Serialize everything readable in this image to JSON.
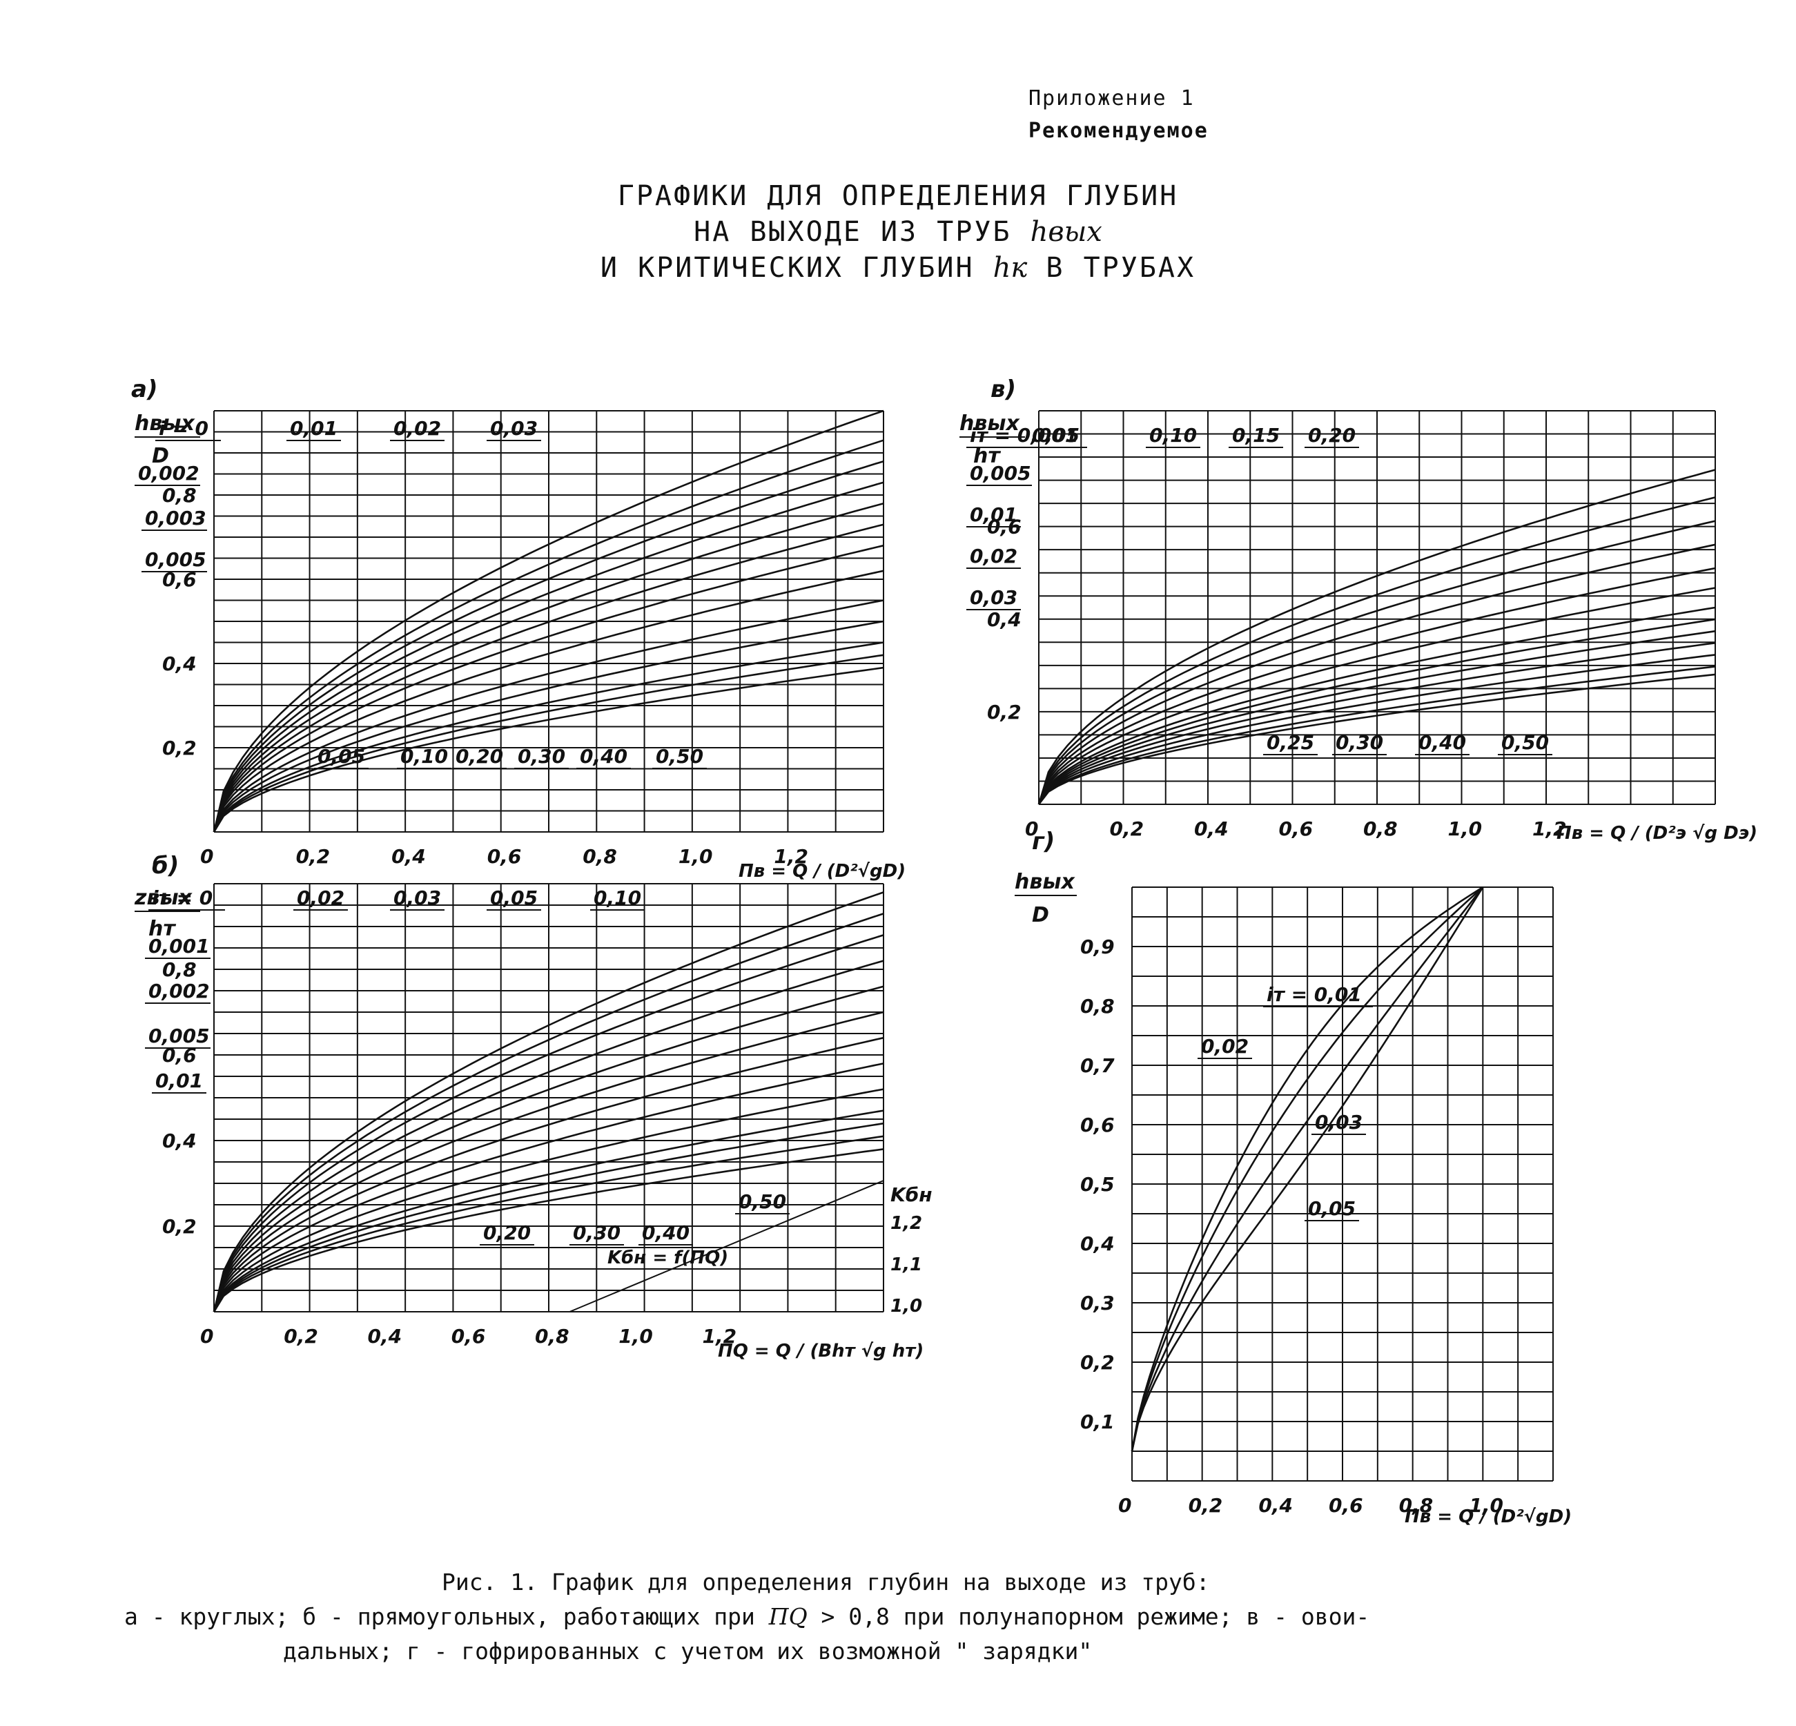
{
  "header": {
    "appendix": "Приложение 1",
    "status": "Рекомендуемое"
  },
  "title": {
    "line1": "ГРАФИКИ ДЛЯ ОПРЕДЕЛЕНИЯ ГЛУБИН",
    "line2a": "НА ВЫХОДЕ ИЗ ТРУБ",
    "line2b": "hвых",
    "line3a": "И КРИТИЧЕСКИХ ГЛУБИН",
    "line3b": "hк",
    "line3c": "В ТРУБАХ"
  },
  "caption": {
    "line1": "Рис. 1. График для определения глубин на выходе из труб:",
    "line2a": "а - круглых; б - прямоугольных, работающих при",
    "line2b": "ПQ",
    "line2c": "> 0,8 при полунапорном режиме; в - овои-",
    "line3": "дальных; г - гофрированных с учетом их возможной \" зарядки\""
  },
  "chart_data": [
    {
      "panel": "а)",
      "type": "line",
      "ylabel_top": "hвых",
      "ylabel_bottom": "D",
      "xlabel": "Пв = Q / (D²√gD)",
      "xlim": [
        0,
        1.4
      ],
      "ylim": [
        0,
        1.0
      ],
      "x_ticks": [
        "0",
        "0,2",
        "0,4",
        "0,6",
        "0,8",
        "1,0",
        "1,2"
      ],
      "y_ticks": [
        "0,2",
        "0,4",
        "0,6",
        "0,8"
      ],
      "series": [
        {
          "name": "i = 0",
          "k": 1.0
        },
        {
          "name": "0,002",
          "k": 0.93
        },
        {
          "name": "0,003",
          "k": 0.88
        },
        {
          "name": "0,005",
          "k": 0.83
        },
        {
          "name": "0,01",
          "k": 0.78
        },
        {
          "name": "0,02",
          "k": 0.73
        },
        {
          "name": "0,03",
          "k": 0.68
        },
        {
          "name": "0,05",
          "k": 0.62
        },
        {
          "name": "0,10",
          "k": 0.55
        },
        {
          "name": "0,20",
          "k": 0.5
        },
        {
          "name": "0,30",
          "k": 0.45
        },
        {
          "name": "0,40",
          "k": 0.42
        },
        {
          "name": "0,50",
          "k": 0.39
        }
      ],
      "labels": [
        "i = 0",
        "0,01",
        "0,02",
        "0,03",
        "0,002",
        "0,003",
        "0,005",
        "0,05",
        "0,10",
        "0,20",
        "0,30",
        "0,40",
        "0,50"
      ]
    },
    {
      "panel": "в)",
      "type": "line",
      "ylabel_top": "hвых",
      "ylabel_bottom": "hт",
      "xlabel": "Пв = Q / (D²э √g Dэ)",
      "xlim": [
        0,
        1.6
      ],
      "ylim": [
        0,
        0.85
      ],
      "x_ticks": [
        "0",
        "0,2",
        "0,4",
        "0,6",
        "0,8",
        "1,0",
        "1,2"
      ],
      "y_ticks": [
        "0,2",
        "0,4",
        "0,6"
      ],
      "series": [
        {
          "name": "iт = 0,001",
          "k": 0.85
        },
        {
          "name": "0,005",
          "k": 0.78
        },
        {
          "name": "0,01",
          "k": 0.72
        },
        {
          "name": "0,02",
          "k": 0.66
        },
        {
          "name": "0,03",
          "k": 0.6
        },
        {
          "name": "0,05",
          "k": 0.55
        },
        {
          "name": "0,10",
          "k": 0.5
        },
        {
          "name": "0,15",
          "k": 0.47
        },
        {
          "name": "0,20",
          "k": 0.44
        },
        {
          "name": "0,25",
          "k": 0.41
        },
        {
          "name": "0,30",
          "k": 0.38
        },
        {
          "name": "0,40",
          "k": 0.35
        },
        {
          "name": "0,50",
          "k": 0.33
        }
      ],
      "labels": [
        "iт = 0,001",
        "0,05",
        "0,10",
        "0,15",
        "0,20",
        "0,005",
        "0,01",
        "0,02",
        "0,03",
        "0,25",
        "0,30",
        "0,40",
        "0,50"
      ]
    },
    {
      "panel": "б)",
      "type": "line",
      "ylabel_top": "zвых",
      "ylabel_bottom": "hт",
      "xlabel": "ПQ = Q / (Bhт √g hт)",
      "xlim": [
        0,
        1.6
      ],
      "ylim": [
        0,
        1.0
      ],
      "x_ticks": [
        "0",
        "0,2",
        "0,4",
        "0,6",
        "0,8",
        "1,0",
        "1,2"
      ],
      "y_ticks": [
        "0,2",
        "0,4",
        "0,6",
        "0,8"
      ],
      "right_axis_label": "Kбн",
      "right_ticks": [
        "1,0",
        "1,1",
        "1,2"
      ],
      "kbn_label": "Kбн = f(ПQ)",
      "series": [
        {
          "name": "iт = 0",
          "k": 0.98
        },
        {
          "name": "0,001",
          "k": 0.93
        },
        {
          "name": "0,002",
          "k": 0.88
        },
        {
          "name": "0,005",
          "k": 0.82
        },
        {
          "name": "0,01",
          "k": 0.76
        },
        {
          "name": "0,02",
          "k": 0.7
        },
        {
          "name": "0,03",
          "k": 0.64
        },
        {
          "name": "0,05",
          "k": 0.58
        },
        {
          "name": "0,10",
          "k": 0.52
        },
        {
          "name": "0,20",
          "k": 0.47
        },
        {
          "name": "0,30",
          "k": 0.44
        },
        {
          "name": "0,40",
          "k": 0.41
        },
        {
          "name": "0,50",
          "k": 0.38
        }
      ],
      "labels": [
        "iт = 0",
        "0,02",
        "0,03",
        "0,05",
        "0,10",
        "0,001",
        "0,002",
        "0,005",
        "0,01",
        "0,20",
        "0,30",
        "0,40",
        "0,50"
      ]
    },
    {
      "panel": "г)",
      "type": "line",
      "ylabel_top": "hвых",
      "ylabel_bottom": "D",
      "xlabel": "Пв = Q / (D²√gD)",
      "xlim": [
        0,
        1.2
      ],
      "ylim": [
        0,
        1.0
      ],
      "x_ticks": [
        "0",
        "0,2",
        "0,4",
        "0,6",
        "0,8",
        "1,0"
      ],
      "y_ticks": [
        "0,1",
        "0,2",
        "0,3",
        "0,4",
        "0,5",
        "0,6",
        "0,7",
        "0,8",
        "0,9"
      ],
      "series": [
        {
          "name": "iт = 0,01"
        },
        {
          "name": "0,02"
        },
        {
          "name": "0,03"
        },
        {
          "name": "0,05"
        }
      ],
      "labels": [
        "iт = 0,01",
        "0,02",
        "0,03",
        "0,05"
      ]
    }
  ]
}
